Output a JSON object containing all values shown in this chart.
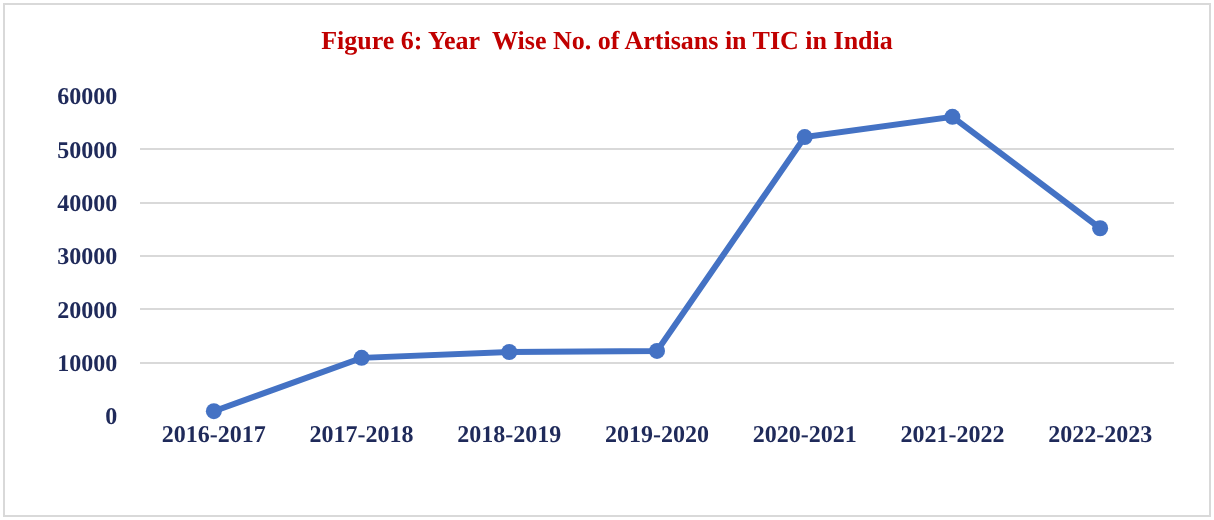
{
  "chart_data": {
    "type": "line",
    "title": "Figure 6: Year  Wise No. of Artisans in TIC in India",
    "categories": [
      "2016-2017",
      "2017-2018",
      "2018-2019",
      "2019-2020",
      "2020-2021",
      "2021-2022",
      "2022-2023"
    ],
    "series": [
      {
        "color": "#4472c4",
        "values": [
          900,
          10900,
          12000,
          12200,
          52300,
          56100,
          35200
        ]
      }
    ],
    "ylim": [
      0,
      60000
    ],
    "yticks": [
      0,
      10000,
      20000,
      30000,
      40000,
      50000,
      60000
    ],
    "grid": "y",
    "marker": "circle",
    "line_style": "solid"
  }
}
